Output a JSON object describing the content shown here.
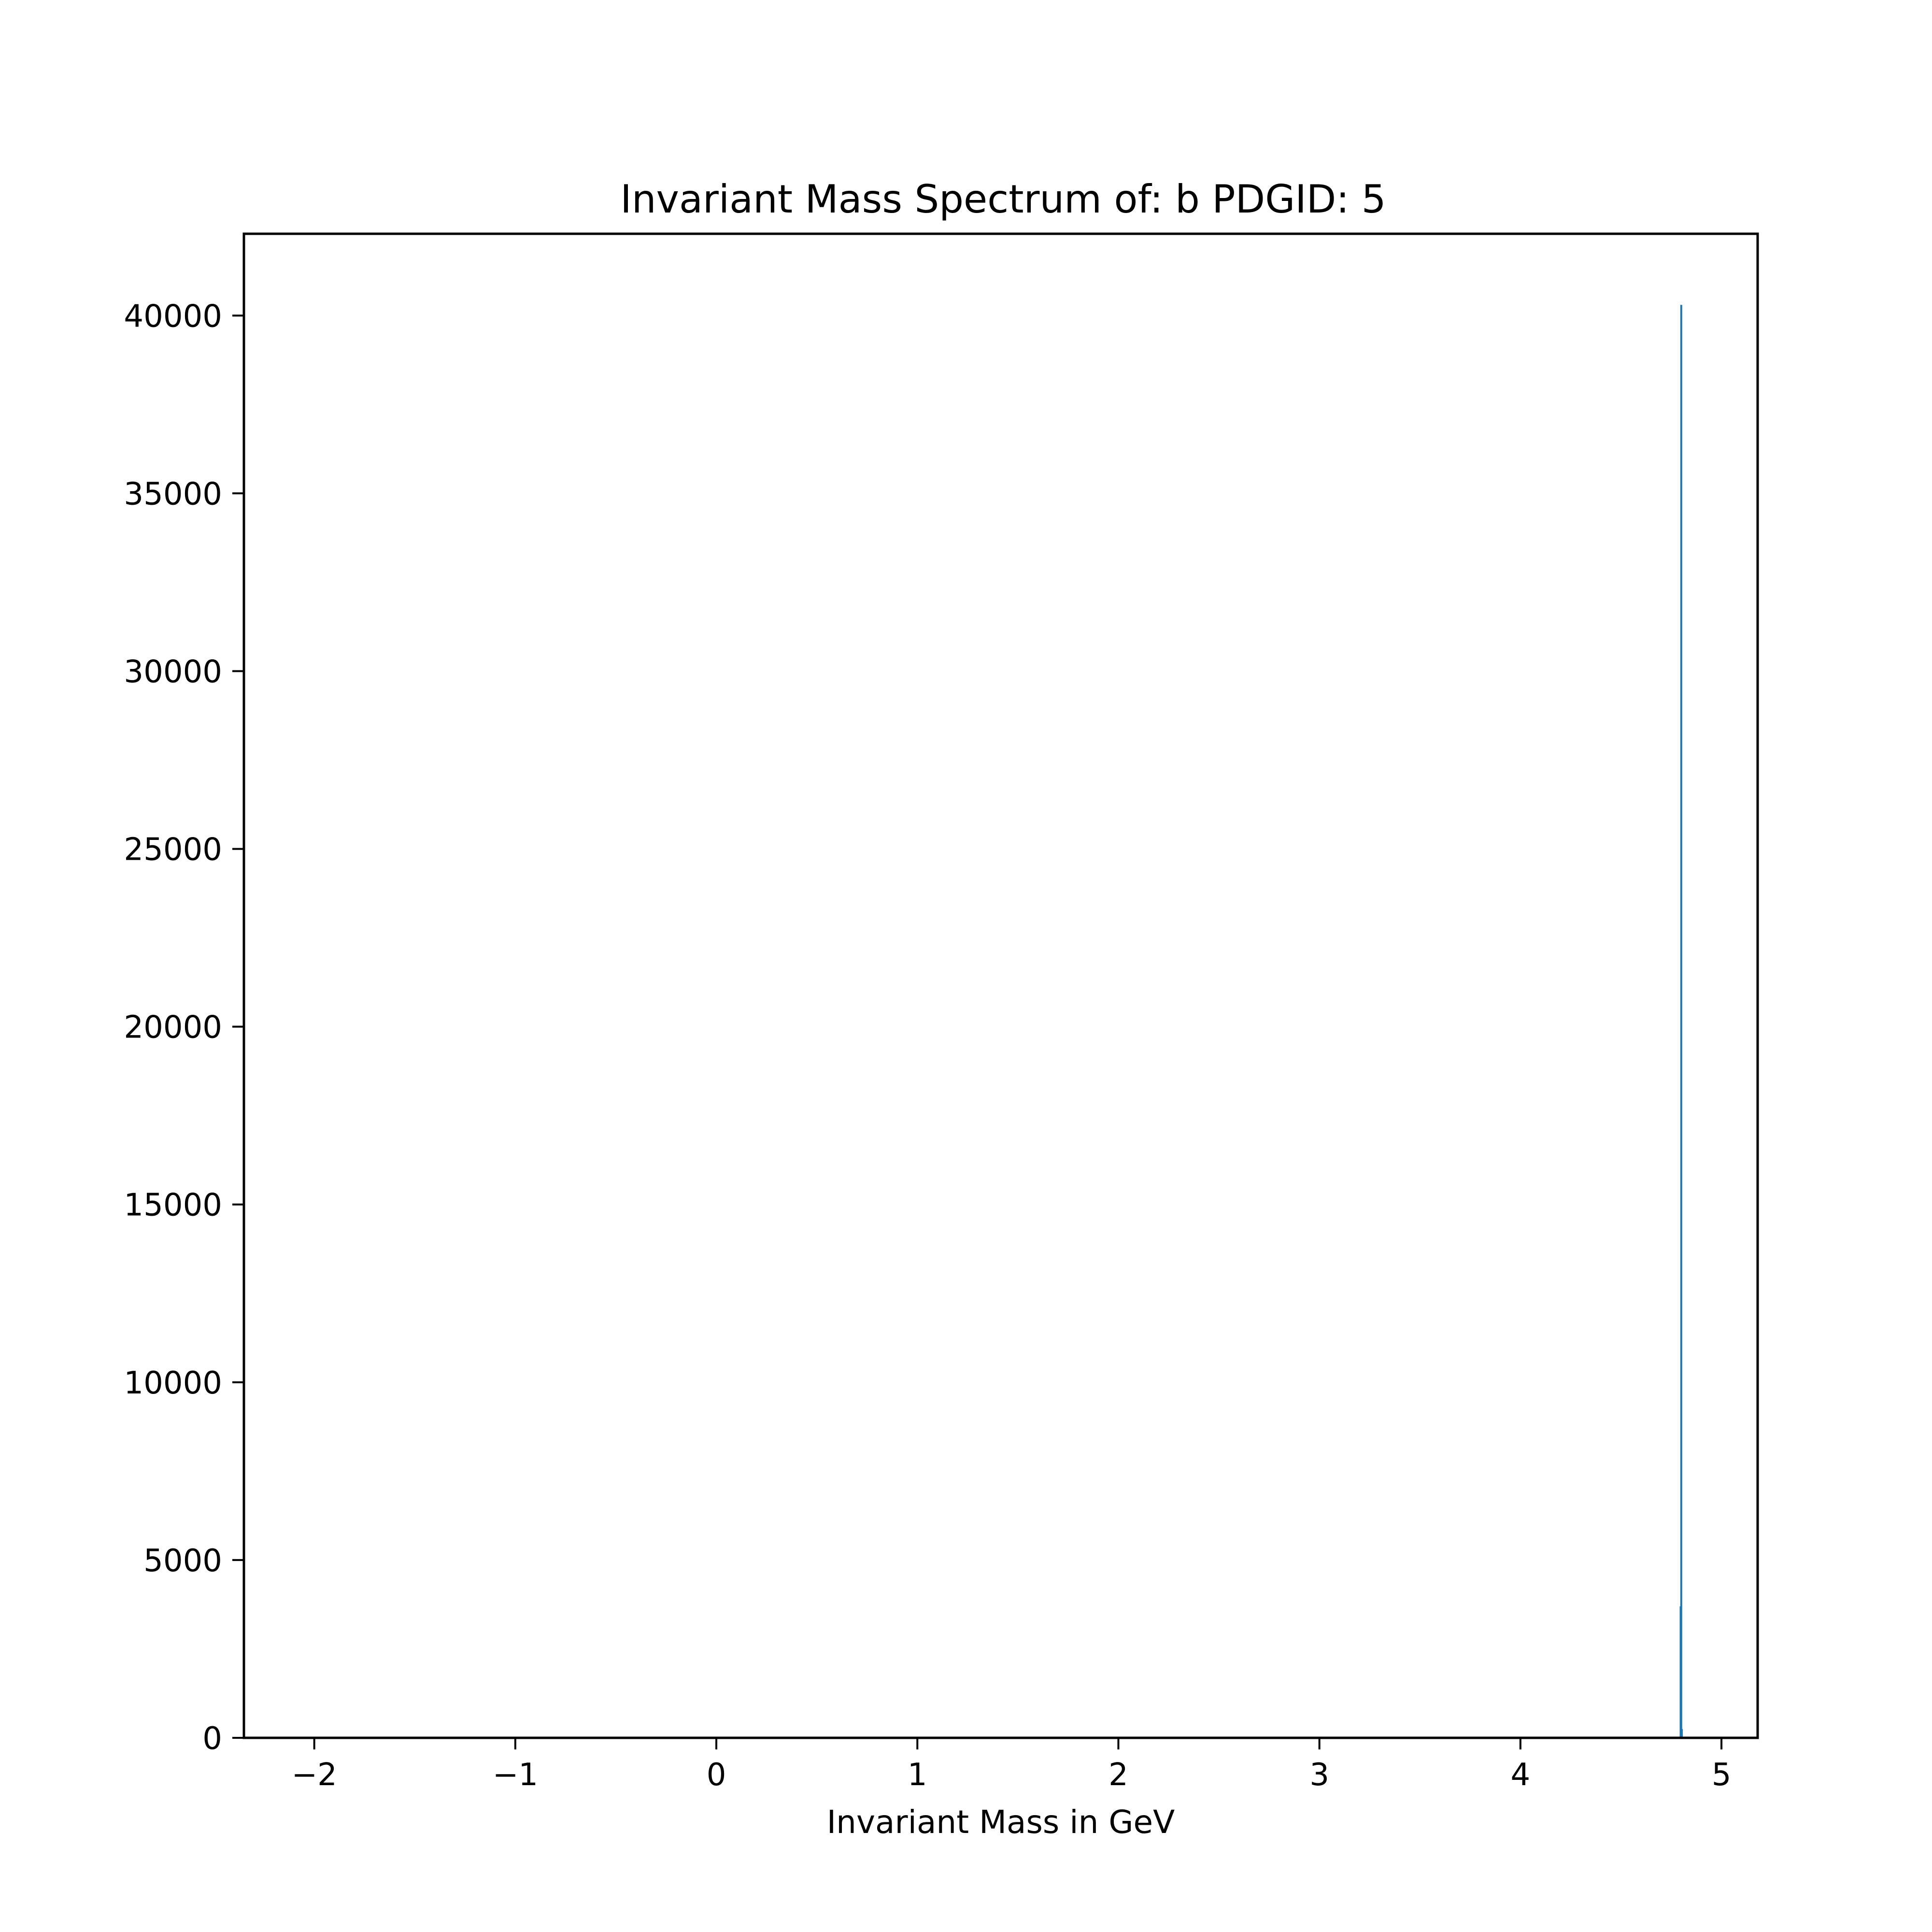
{
  "chart_data": {
    "type": "bar",
    "title": "Invariant Mass Spectrum of: b PDGID: 5",
    "xlabel": "Invariant Mass in GeV",
    "ylabel": "",
    "xlim": [
      -2.35,
      5.18
    ],
    "ylim": [
      0,
      42300
    ],
    "x_ticks": [
      -2,
      -1,
      0,
      1,
      2,
      3,
      4,
      5
    ],
    "x_tick_labels": [
      "−2",
      "−1",
      "0",
      "1",
      "2",
      "3",
      "4",
      "5"
    ],
    "y_ticks": [
      0,
      5000,
      10000,
      15000,
      20000,
      25000,
      30000,
      35000,
      40000
    ],
    "y_tick_labels": [
      "0",
      "5000",
      "10000",
      "15000",
      "20000",
      "25000",
      "30000",
      "35000",
      "40000"
    ],
    "grid": false,
    "color": "#1f77b4",
    "bars": [
      {
        "x": 4.797,
        "value": 3700
      },
      {
        "x": 4.8,
        "value": 40300
      },
      {
        "x": 4.803,
        "value": 250
      }
    ]
  }
}
